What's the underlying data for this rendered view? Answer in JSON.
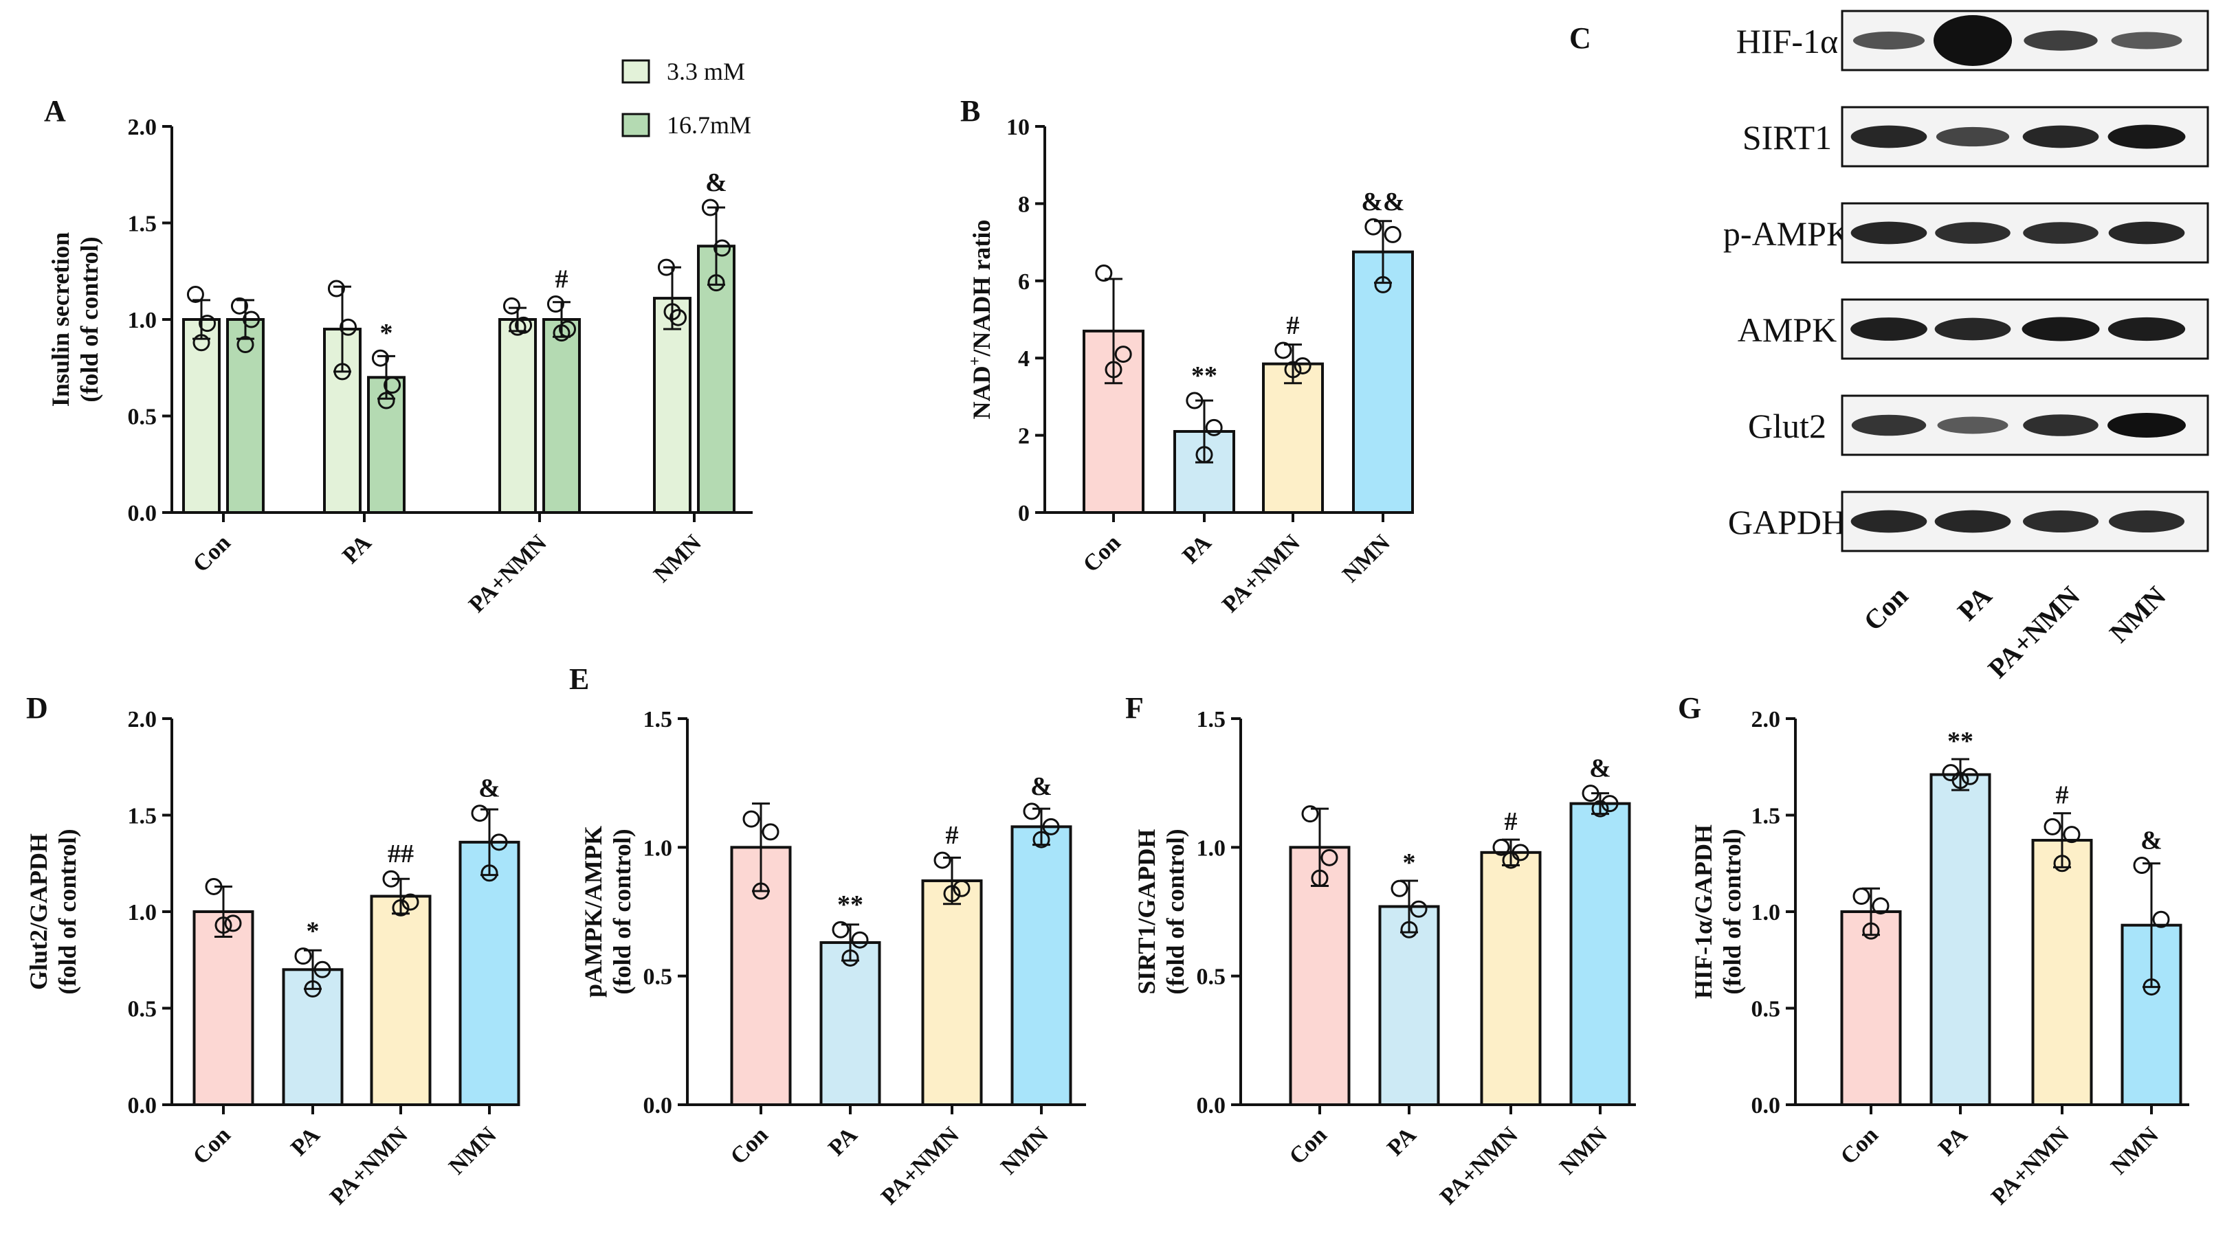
{
  "chart_data": [
    {
      "id": "A",
      "type": "bar",
      "panel_label": "A",
      "ylabel": [
        "Insulin secretion",
        "(fold of control)"
      ],
      "ylim": [
        0,
        2.0
      ],
      "yticks": [
        "0.0",
        "0.5",
        "1.0",
        "1.5",
        "2.0"
      ],
      "categories": [
        "Con",
        "PA",
        "PA+NMN",
        "NMN"
      ],
      "legend": {
        "placement": "top",
        "entries": [
          "3.3 mM",
          "16.7mM"
        ]
      },
      "series": [
        {
          "name": "3.3 mM",
          "color": "#e3f2d9",
          "values": [
            1.0,
            0.95,
            1.0,
            1.11
          ],
          "errors": [
            0.1,
            0.22,
            0.06,
            0.16
          ],
          "points": [
            [
              1.13,
              0.98,
              0.88
            ],
            [
              1.16,
              0.96,
              0.73
            ],
            [
              1.07,
              0.97,
              0.96
            ],
            [
              1.27,
              1.01,
              1.04
            ]
          ],
          "sig": [
            "",
            "",
            "",
            ""
          ]
        },
        {
          "name": "16.7mM",
          "color": "#b4dab2",
          "values": [
            1.0,
            0.7,
            1.0,
            1.38
          ],
          "errors": [
            0.1,
            0.11,
            0.09,
            0.2
          ],
          "points": [
            [
              1.07,
              1.0,
              0.87
            ],
            [
              0.8,
              0.66,
              0.58
            ],
            [
              1.08,
              0.95,
              0.93
            ],
            [
              1.58,
              1.37,
              1.19
            ]
          ],
          "sig": [
            "",
            "*",
            "#",
            "&"
          ]
        }
      ]
    },
    {
      "id": "B",
      "type": "bar",
      "panel_label": "B",
      "ylabel": [
        "NAD",
        "+",
        "/NADH ratio"
      ],
      "ylim": [
        0,
        10
      ],
      "yticks": [
        "0",
        "2",
        "4",
        "6",
        "8",
        "10"
      ],
      "categories": [
        "Con",
        "PA",
        "PA+NMN",
        "NMN"
      ],
      "colors": [
        "#fcd7d3",
        "#cdeaf5",
        "#fdefc8",
        "#a8e4fa"
      ],
      "values": [
        4.7,
        2.1,
        3.85,
        6.75
      ],
      "errors": [
        1.35,
        0.8,
        0.5,
        0.8
      ],
      "points": [
        [
          6.2,
          4.1,
          3.7
        ],
        [
          2.9,
          2.2,
          1.5
        ],
        [
          4.2,
          3.8,
          3.7
        ],
        [
          7.4,
          7.2,
          5.9
        ]
      ],
      "sig": [
        "",
        "**",
        "#",
        "&&"
      ]
    },
    {
      "id": "D",
      "type": "bar",
      "panel_label": "D",
      "ylabel": [
        "Glut2/GAPDH",
        "(fold of control)"
      ],
      "ylim": [
        0,
        2.0
      ],
      "yticks": [
        "0.0",
        "0.5",
        "1.0",
        "1.5",
        "2.0"
      ],
      "categories": [
        "Con",
        "PA",
        "PA+NMN",
        "NMN"
      ],
      "colors": [
        "#fcd7d3",
        "#cdeaf5",
        "#fdefc8",
        "#a8e4fa"
      ],
      "values": [
        1.0,
        0.7,
        1.08,
        1.36
      ],
      "errors": [
        0.13,
        0.1,
        0.09,
        0.17
      ],
      "points": [
        [
          1.13,
          0.94,
          0.93
        ],
        [
          0.77,
          0.7,
          0.6
        ],
        [
          1.17,
          1.05,
          1.02
        ],
        [
          1.51,
          1.36,
          1.2
        ]
      ],
      "sig": [
        "",
        "*",
        "##",
        "&"
      ]
    },
    {
      "id": "E",
      "type": "bar",
      "panel_label": "E",
      "ylabel": [
        "pAMPK/AMPK",
        "(fold of control)"
      ],
      "ylim": [
        0,
        1.5
      ],
      "yticks": [
        "0.0",
        "0.5",
        "1.0",
        "1.5"
      ],
      "categories": [
        "Con",
        "PA",
        "PA+NMN",
        "NMN"
      ],
      "colors": [
        "#fcd7d3",
        "#cdeaf5",
        "#fdefc8",
        "#a8e4fa"
      ],
      "values": [
        1.0,
        0.63,
        0.87,
        1.08
      ],
      "errors": [
        0.17,
        0.07,
        0.09,
        0.07
      ],
      "points": [
        [
          1.11,
          1.06,
          0.83
        ],
        [
          0.68,
          0.64,
          0.57
        ],
        [
          0.95,
          0.84,
          0.82
        ],
        [
          1.14,
          1.08,
          1.03
        ]
      ],
      "sig": [
        "",
        "**",
        "#",
        "&"
      ]
    },
    {
      "id": "F",
      "type": "bar",
      "panel_label": "F",
      "ylabel": [
        "SIRT1/GAPDH",
        "(fold of control)"
      ],
      "ylim": [
        0,
        1.5
      ],
      "yticks": [
        "0.0",
        "0.5",
        "1.0",
        "1.5"
      ],
      "categories": [
        "Con",
        "PA",
        "PA+NMN",
        "NMN"
      ],
      "colors": [
        "#fcd7d3",
        "#cdeaf5",
        "#fdefc8",
        "#a8e4fa"
      ],
      "values": [
        1.0,
        0.77,
        0.98,
        1.17
      ],
      "errors": [
        0.15,
        0.1,
        0.05,
        0.04
      ],
      "points": [
        [
          1.13,
          0.96,
          0.88
        ],
        [
          0.84,
          0.76,
          0.68
        ],
        [
          1.0,
          0.98,
          0.95
        ],
        [
          1.21,
          1.17,
          1.15
        ]
      ],
      "sig": [
        "",
        "*",
        "#",
        "&"
      ]
    },
    {
      "id": "G",
      "type": "bar",
      "panel_label": "G",
      "ylabel": [
        "HIF-1α/GAPDH",
        "(fold of control)"
      ],
      "ylim": [
        0,
        2.0
      ],
      "yticks": [
        "0.0",
        "0.5",
        "1.0",
        "1.5",
        "2.0"
      ],
      "categories": [
        "Con",
        "PA",
        "PA+NMN",
        "NMN"
      ],
      "colors": [
        "#fcd7d3",
        "#cdeaf5",
        "#fdefc8",
        "#a8e4fa"
      ],
      "values": [
        1.0,
        1.71,
        1.37,
        0.93
      ],
      "errors": [
        0.12,
        0.08,
        0.14,
        0.32
      ],
      "points": [
        [
          1.08,
          1.03,
          0.9
        ],
        [
          1.72,
          1.7,
          1.68
        ],
        [
          1.44,
          1.4,
          1.25
        ],
        [
          1.24,
          0.96,
          0.61
        ]
      ],
      "sig": [
        "",
        "**",
        "#",
        "&"
      ]
    }
  ],
  "blot": {
    "panel_label": "C",
    "rows": [
      "HIF-1α",
      "SIRT1",
      "p-AMPK",
      "AMPK",
      "Glut2",
      "GAPDH"
    ],
    "lanes": [
      "Con",
      "PA",
      "PA+NMN",
      "NMN"
    ],
    "intensity": [
      [
        0.55,
        1.0,
        0.7,
        0.5
      ],
      [
        0.85,
        0.65,
        0.85,
        0.95
      ],
      [
        0.85,
        0.8,
        0.8,
        0.85
      ],
      [
        0.9,
        0.85,
        0.95,
        0.92
      ],
      [
        0.75,
        0.5,
        0.8,
        1.0
      ],
      [
        0.85,
        0.85,
        0.82,
        0.82
      ]
    ]
  }
}
